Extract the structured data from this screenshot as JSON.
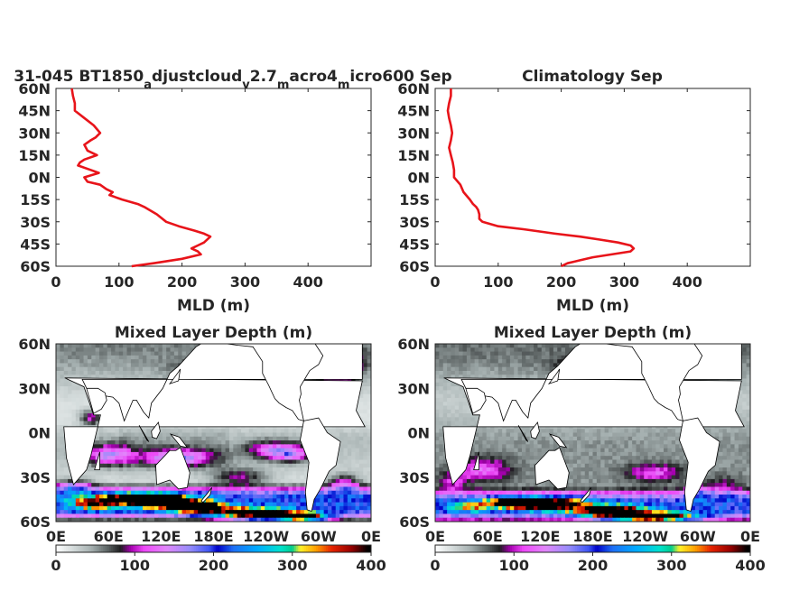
{
  "chart_data": [
    {
      "type": "line",
      "title_parts": [
        {
          "text": "31-045 BT1850",
          "sub": false
        },
        {
          "text": "a",
          "sub": true
        },
        {
          "text": "djustcloud",
          "sub": false
        },
        {
          "text": "v",
          "sub": true
        },
        {
          "text": "2.7",
          "sub": false
        },
        {
          "text": "m",
          "sub": true
        },
        {
          "text": "acro4",
          "sub": false
        },
        {
          "text": "m",
          "sub": true
        },
        {
          "text": "icro600 Sep",
          "sub": false
        }
      ],
      "xlabel": "MLD (m)",
      "xlim": [
        0,
        500
      ],
      "ylim": [
        -60,
        60
      ],
      "x_ticks": [
        "0",
        "100",
        "200",
        "300",
        "400"
      ],
      "y_ticks": [
        "60N",
        "45N",
        "30N",
        "15N",
        "0N",
        "15S",
        "30S",
        "45S",
        "60S"
      ],
      "series": [
        {
          "color": "#e8141a",
          "lat": [
            60,
            55,
            50,
            45,
            40,
            35,
            30,
            27,
            25,
            22,
            18,
            15,
            12,
            10,
            8,
            5,
            3,
            0,
            -3,
            -5,
            -8,
            -10,
            -12,
            -15,
            -18,
            -20,
            -25,
            -30,
            -33,
            -36,
            -38,
            -40,
            -42,
            -44,
            -46,
            -48,
            -50,
            -52,
            -55,
            -58,
            -60
          ],
          "mld": [
            25,
            27,
            30,
            30,
            45,
            60,
            70,
            63,
            55,
            45,
            50,
            65,
            45,
            38,
            35,
            55,
            68,
            45,
            50,
            70,
            80,
            90,
            85,
            105,
            130,
            140,
            160,
            175,
            195,
            220,
            235,
            245,
            240,
            235,
            225,
            215,
            225,
            230,
            200,
            155,
            120
          ]
        }
      ]
    },
    {
      "type": "line",
      "title_parts": [
        {
          "text": "Climatology Sep",
          "sub": false
        }
      ],
      "xlabel": "MLD (m)",
      "xlim": [
        0,
        500
      ],
      "ylim": [
        -60,
        60
      ],
      "x_ticks": [
        "0",
        "100",
        "200",
        "300",
        "400"
      ],
      "y_ticks": [
        "60N",
        "45N",
        "30N",
        "15N",
        "0N",
        "15S",
        "30S",
        "45S",
        "60S"
      ],
      "series": [
        {
          "color": "#e8141a",
          "lat": [
            60,
            55,
            50,
            45,
            40,
            35,
            30,
            25,
            20,
            15,
            10,
            5,
            0,
            -5,
            -10,
            -15,
            -18,
            -20,
            -22,
            -25,
            -28,
            -30,
            -33,
            -35,
            -38,
            -40,
            -42,
            -44,
            -46,
            -48,
            -50,
            -52,
            -54,
            -56,
            -58,
            -60
          ],
          "mld": [
            25,
            25,
            22,
            20,
            22,
            25,
            27,
            25,
            22,
            25,
            28,
            30,
            30,
            40,
            45,
            55,
            60,
            65,
            68,
            70,
            70,
            75,
            100,
            140,
            190,
            230,
            260,
            290,
            310,
            315,
            310,
            280,
            250,
            230,
            210,
            200
          ]
        }
      ]
    },
    {
      "type": "heatmap",
      "title": "Mixed Layer Depth (m)",
      "variant": "model",
      "lon_ticks": [
        "0E",
        "60E",
        "120E",
        "180E",
        "120W",
        "60W",
        "0E"
      ],
      "lat_ticks": [
        "60N",
        "30N",
        "0N",
        "30S",
        "60S"
      ],
      "colorbar": {
        "min": 0,
        "max": 400,
        "ticks": [
          "0",
          "100",
          "200",
          "300",
          "400"
        ]
      }
    },
    {
      "type": "heatmap",
      "title": "Mixed Layer Depth (m)",
      "variant": "climatology",
      "lon_ticks": [
        "0E",
        "60E",
        "120E",
        "180E",
        "120W",
        "60W",
        "0E"
      ],
      "lat_ticks": [
        "60N",
        "30N",
        "0N",
        "30S",
        "60S"
      ],
      "colorbar": {
        "min": 0,
        "max": 400,
        "ticks": [
          "0",
          "100",
          "200",
          "300",
          "400"
        ]
      }
    }
  ]
}
